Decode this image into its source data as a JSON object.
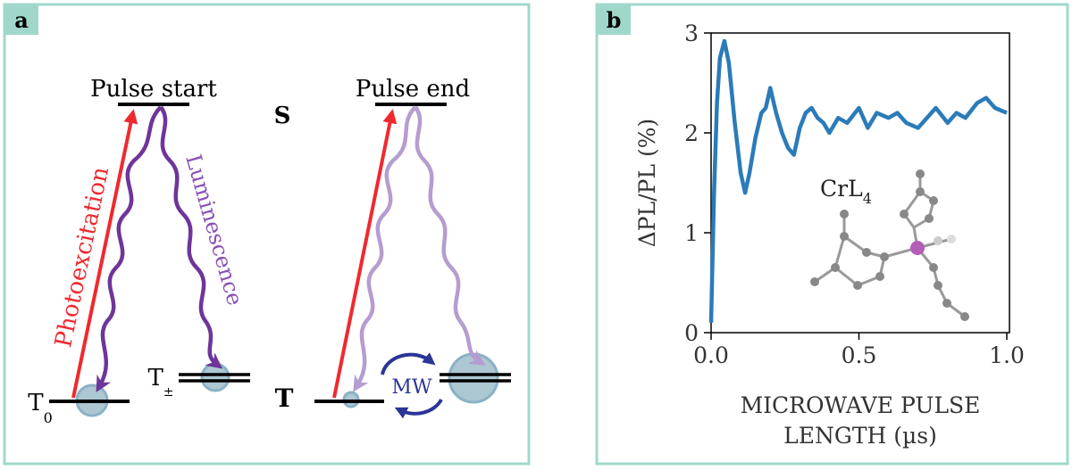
{
  "panel_a": {
    "label": "a",
    "pulse_start": "Pulse start",
    "pulse_end": "Pulse end",
    "singlet": "S",
    "triplet": "T",
    "t0_main": "T",
    "t0_sub": "0",
    "tpm_main": "T",
    "tpm_sub": "±",
    "photoexcitation": "Photoexcitation",
    "luminescence": "Luminescence",
    "mw": "MW",
    "colors": {
      "excitation": "#ee2a2f",
      "luminescence": "#6e359a",
      "luminescence_faded": "#b49dd0",
      "population": "#7fa9bf",
      "mw": "#2b3596",
      "border": "#9fd8cb"
    }
  },
  "panel_b": {
    "label": "b",
    "molecule_label_main": "CrL",
    "molecule_label_sub": "4"
  },
  "chart_data": {
    "type": "line",
    "xlabel_line1": "MICROWAVE PULSE",
    "xlabel_line2": "LENGTH (µs)",
    "ylabel": "ΔPL/PL (%)",
    "xlim": [
      0,
      1.0
    ],
    "ylim": [
      0,
      3
    ],
    "xticks": [
      "0.0",
      "0.5",
      "1.0"
    ],
    "yticks": [
      "0",
      "1",
      "2",
      "3"
    ],
    "grid": false,
    "series": [
      {
        "color": "#2b7bb9",
        "x": [
          0,
          0.01,
          0.02,
          0.03,
          0.045,
          0.06,
          0.08,
          0.1,
          0.115,
          0.13,
          0.15,
          0.17,
          0.185,
          0.2,
          0.22,
          0.24,
          0.26,
          0.28,
          0.3,
          0.32,
          0.34,
          0.36,
          0.38,
          0.4,
          0.43,
          0.46,
          0.5,
          0.53,
          0.56,
          0.6,
          0.63,
          0.66,
          0.7,
          0.73,
          0.76,
          0.8,
          0.83,
          0.86,
          0.9,
          0.93,
          0.96,
          1.0
        ],
        "y": [
          0.1,
          1.4,
          2.3,
          2.75,
          2.92,
          2.7,
          2.1,
          1.6,
          1.4,
          1.6,
          1.95,
          2.2,
          2.25,
          2.45,
          2.2,
          2.0,
          1.85,
          1.78,
          2.05,
          2.2,
          2.25,
          2.15,
          2.1,
          2.0,
          2.15,
          2.1,
          2.25,
          2.05,
          2.2,
          2.15,
          2.2,
          2.1,
          2.05,
          2.15,
          2.25,
          2.1,
          2.2,
          2.15,
          2.3,
          2.35,
          2.25,
          2.2
        ]
      }
    ]
  }
}
